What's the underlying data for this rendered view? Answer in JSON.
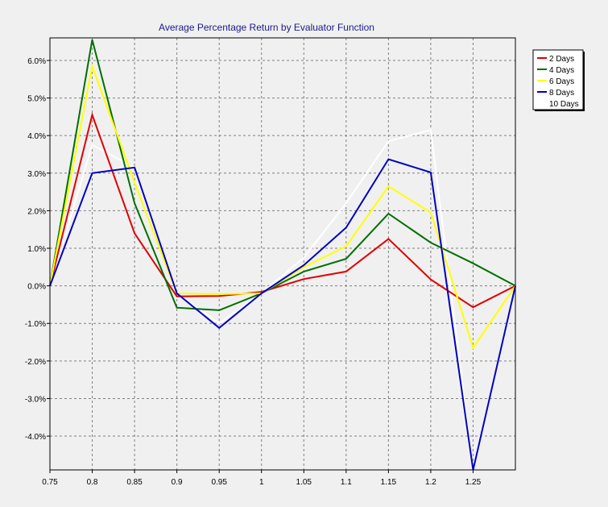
{
  "chart_data": {
    "type": "line",
    "title": "Average Percentage Return by Evaluator Function",
    "xlabel": "",
    "ylabel": "",
    "x": [
      0.75,
      0.8,
      0.85,
      0.9,
      0.95,
      1.0,
      1.05,
      1.1,
      1.15,
      1.2,
      1.25,
      1.3
    ],
    "x_tick_labels": [
      "0.75",
      "0.8",
      "0.85",
      "0.9",
      "0.95",
      "1",
      "1.05",
      "1.1",
      "1.15",
      "1.2",
      "1.25"
    ],
    "xlim": [
      0.75,
      1.3
    ],
    "ylim": [
      -4.9,
      6.6
    ],
    "y_ticks": [
      6,
      5,
      4,
      3,
      2,
      1,
      0,
      -1,
      -2,
      -3,
      -4
    ],
    "y_tick_labels": [
      "6.0%",
      "5.0%",
      "4.0%",
      "3.0%",
      "2.0%",
      "1.0%",
      "0.0%",
      "-1.0%",
      "-2.0%",
      "-3.0%",
      "-4.0%"
    ],
    "grid": true,
    "legend_position": "top-right",
    "series": [
      {
        "name": "2 Days",
        "color": "#e00000",
        "values": [
          0.0,
          4.55,
          1.4,
          -0.28,
          -0.27,
          -0.16,
          0.18,
          0.38,
          1.25,
          0.17,
          -0.57,
          0.0
        ]
      },
      {
        "name": "4 Days",
        "color": "#007000",
        "values": [
          0.0,
          6.55,
          2.2,
          -0.58,
          -0.65,
          -0.2,
          0.38,
          0.72,
          1.92,
          1.15,
          0.6,
          0.0
        ]
      },
      {
        "name": "6 Days",
        "color": "#ffff00",
        "values": [
          0.0,
          5.85,
          2.75,
          -0.2,
          -0.22,
          -0.2,
          0.5,
          1.05,
          2.65,
          1.95,
          -1.65,
          0.0
        ]
      },
      {
        "name": "8 Days",
        "color": "#0000c0",
        "values": [
          0.0,
          3.0,
          3.15,
          -0.2,
          -1.12,
          -0.2,
          0.55,
          1.55,
          3.37,
          3.02,
          -4.9,
          0.0
        ]
      },
      {
        "name": "10 Days",
        "color": "#ffffff",
        "values": [
          0.0,
          3.75,
          3.15,
          -0.2,
          -1.0,
          -0.2,
          0.75,
          2.2,
          3.85,
          4.15,
          -4.9,
          0.0
        ]
      }
    ]
  }
}
